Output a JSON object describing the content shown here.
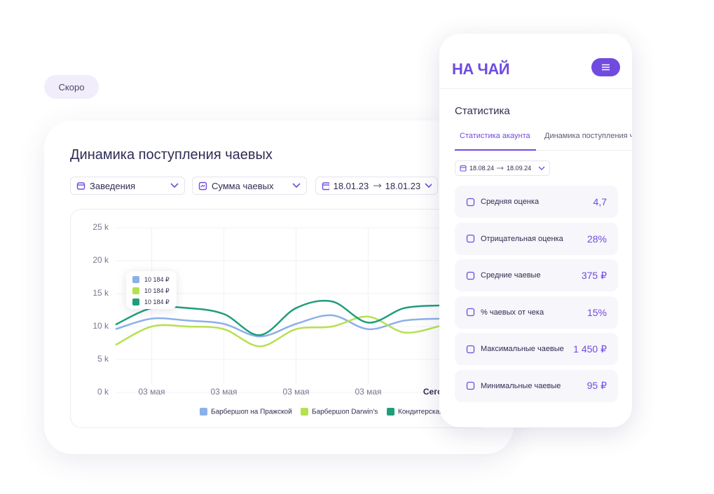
{
  "badge": "Скоро",
  "dashboard": {
    "title": "Динамика поступления чаевых",
    "filters": [
      "Заведения",
      "Сумма чаевых"
    ],
    "date_from": "18.01.23",
    "date_to": "18.01.23"
  },
  "chart_data": {
    "type": "line",
    "categories": [
      null,
      "03 мая",
      null,
      "03 мая",
      null,
      "03 мая",
      null,
      "03 мая",
      null,
      "Сегодня"
    ],
    "series": [
      {
        "name": "Барбершоп на Пражской",
        "color": "#8cb0ea",
        "values": [
          9.6,
          11.2,
          10.9,
          10.4,
          8.5,
          10.4,
          11.7,
          9.6,
          10.9,
          11.2
        ]
      },
      {
        "name": "Барбершоп Darwin's",
        "color": "#b6e14f",
        "values": [
          7.2,
          10,
          10,
          9.6,
          7.0,
          9.6,
          10,
          11.5,
          9.1,
          10.1
        ]
      },
      {
        "name": "Кондитерская",
        "color": "#1f9e7b",
        "values": [
          10.3,
          12.8,
          12.8,
          11.9,
          8.7,
          12.8,
          13.8,
          10.6,
          12.8,
          13.2
        ]
      }
    ],
    "ylim": [
      0,
      25
    ],
    "yticks": [
      {
        "value": 0,
        "label": "0 k"
      },
      {
        "value": 5,
        "label": "5 k"
      },
      {
        "value": 10,
        "label": "10 k"
      },
      {
        "value": 15,
        "label": "15 k"
      },
      {
        "value": 20,
        "label": "20 k"
      },
      {
        "value": 25,
        "label": "25 k"
      }
    ],
    "grid": true,
    "tooltip": [
      "10 184 ₽",
      "10 184 ₽",
      "10 184 ₽"
    ]
  },
  "phone": {
    "logo": "НА ЧАЙ",
    "section": "Статистика",
    "tabs": [
      "Статистика акаунта",
      "Динамика поступления ч"
    ],
    "date_from": "18.08.24",
    "date_to": "18.09.24",
    "stats": [
      {
        "label": "Средняя оценка",
        "value": "4,7"
      },
      {
        "label": "Отрицательная оценка",
        "value": "28%"
      },
      {
        "label": "Средние чаевые",
        "value": "375 ₽"
      },
      {
        "label": "% чаевых от чека",
        "value": "15%"
      },
      {
        "label": "Максимальные чаевые",
        "value": "1 450 ₽"
      },
      {
        "label": "Минимальные чаевые",
        "value": "95 ₽"
      }
    ]
  }
}
